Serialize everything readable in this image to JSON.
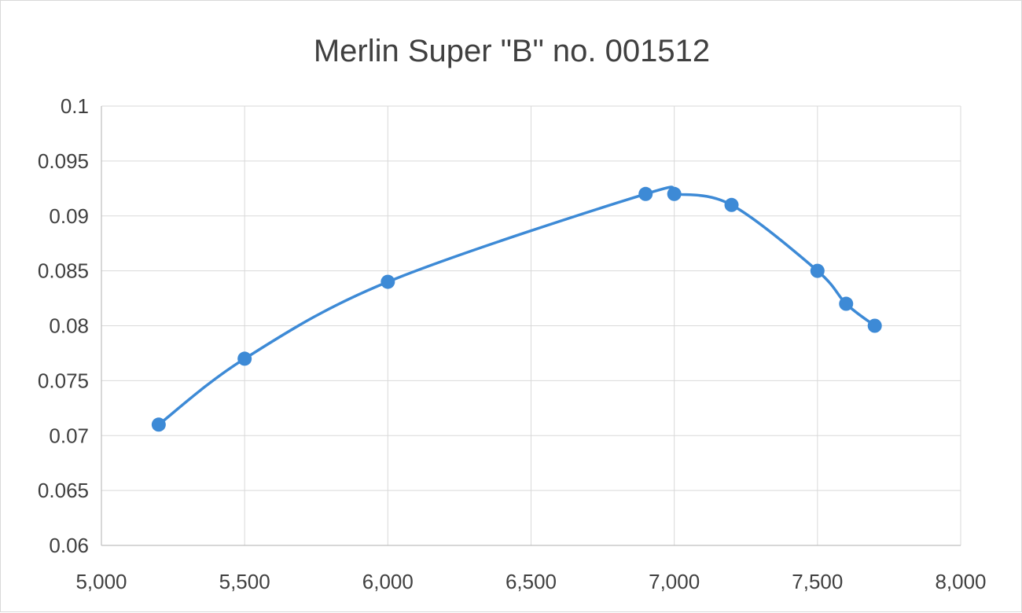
{
  "chart_data": {
    "type": "scatter",
    "title": "Merlin Super \"B\" no. 001512",
    "xlabel": "",
    "ylabel": "",
    "xlim": [
      5000,
      8000
    ],
    "ylim": [
      0.06,
      0.1
    ],
    "x_ticks": [
      5000,
      5500,
      6000,
      6500,
      7000,
      7500,
      8000
    ],
    "x_tick_labels": [
      "5,000",
      "5,500",
      "6,000",
      "6,500",
      "7,000",
      "7,500",
      "8,000"
    ],
    "y_ticks": [
      0.06,
      0.065,
      0.07,
      0.075,
      0.08,
      0.085,
      0.09,
      0.095,
      0.1
    ],
    "y_tick_labels": [
      "0.06",
      "0.065",
      "0.07",
      "0.075",
      "0.08",
      "0.085",
      "0.09",
      "0.095",
      "0.1"
    ],
    "grid": true,
    "legend": "none",
    "line_style": "smooth",
    "color": "#3d8ad6",
    "series": [
      {
        "x": [
          5200,
          5500,
          6000,
          6900,
          7000,
          7200,
          7500,
          7600,
          7700
        ],
        "y": [
          0.071,
          0.077,
          0.084,
          0.092,
          0.092,
          0.091,
          0.085,
          0.082,
          0.08
        ]
      }
    ]
  }
}
